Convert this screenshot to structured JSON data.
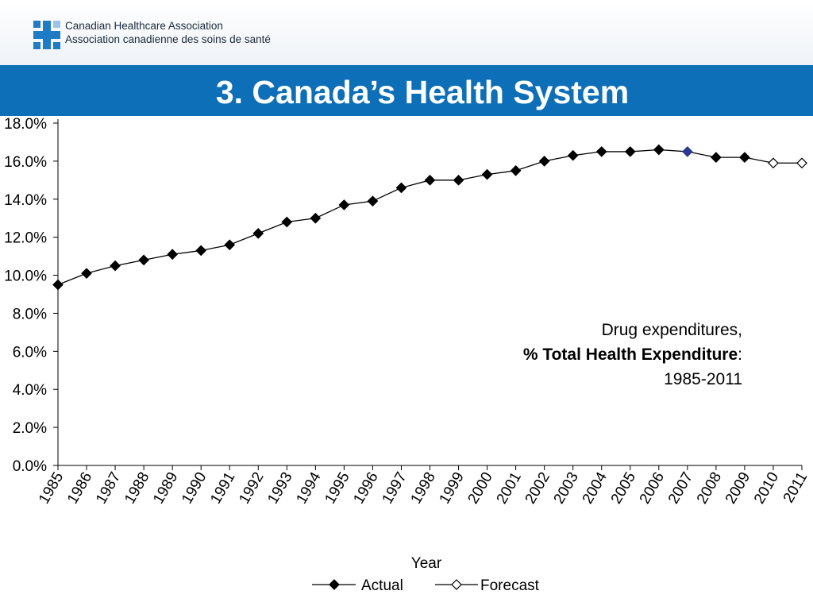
{
  "header": {
    "org_name_en": "Canadian Healthcare Association",
    "org_name_fr": "Association canadienne des soins de santé",
    "logo_icon": "cha-logo-icon",
    "band_color": "#0d6fb8"
  },
  "slide_title": "3. Canada’s Health System",
  "annotation": {
    "line1": "Drug expenditures,",
    "line2": "% Total Health Expenditure",
    "line2_suffix": ":",
    "line3": "1985-2011"
  },
  "chart_data": {
    "type": "line",
    "xlabel": "Year",
    "ylabel": "",
    "ylim": [
      0,
      18
    ],
    "yticks": [
      "0.0%",
      "2.0%",
      "4.0%",
      "6.0%",
      "8.0%",
      "10.0%",
      "12.0%",
      "14.0%",
      "16.0%",
      "18.0%"
    ],
    "categories": [
      "1985",
      "1986",
      "1987",
      "1988",
      "1989",
      "1990",
      "1991",
      "1992",
      "1993",
      "1994",
      "1995",
      "1996",
      "1997",
      "1998",
      "1999",
      "2000",
      "2001",
      "2002",
      "2003",
      "2004",
      "2005",
      "2006",
      "2007",
      "2008",
      "2009",
      "2010",
      "2011"
    ],
    "values": [
      9.5,
      10.1,
      10.5,
      10.8,
      11.1,
      11.3,
      11.6,
      12.2,
      12.8,
      13.0,
      13.7,
      13.9,
      14.6,
      15.0,
      15.0,
      15.3,
      15.5,
      16.0,
      16.3,
      16.5,
      16.5,
      16.6,
      16.5,
      16.2,
      16.2,
      15.9,
      15.9
    ],
    "marker_kind": [
      "actual",
      "actual",
      "actual",
      "actual",
      "actual",
      "actual",
      "actual",
      "actual",
      "actual",
      "actual",
      "actual",
      "actual",
      "actual",
      "actual",
      "actual",
      "actual",
      "actual",
      "actual",
      "actual",
      "actual",
      "actual",
      "actual",
      "highlight",
      "actual",
      "actual",
      "forecast",
      "forecast"
    ],
    "highlight_color": "#2b3990",
    "legend": [
      {
        "name": "Actual",
        "marker": "filled-diamond"
      },
      {
        "name": "Forecast",
        "marker": "open-diamond"
      }
    ],
    "legend_position": "bottom",
    "grid": false
  }
}
